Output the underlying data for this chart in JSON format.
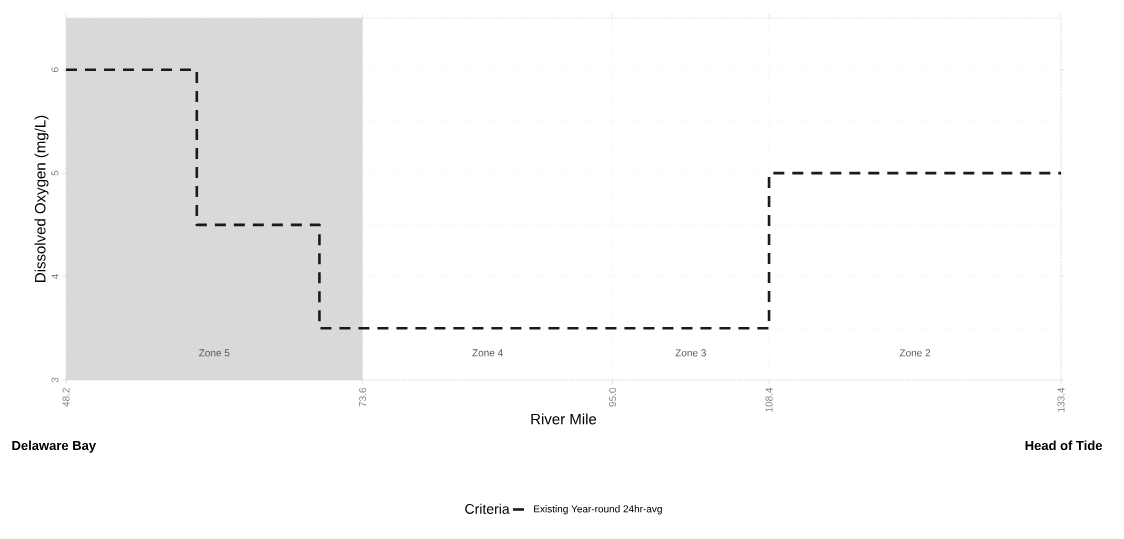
{
  "chart_data": {
    "type": "step",
    "xlabel": "River Mile",
    "ylabel": "Dissolved Oxygen (mg/L)",
    "legend_title": "Criteria",
    "series": [
      {
        "name": "Existing Year-round 24hr-avg",
        "color": "#1a1a1a",
        "x": [
          48.2,
          59.4,
          69.9,
          108.4,
          133.4
        ],
        "values": [
          6,
          4.5,
          3.5,
          5,
          5
        ]
      }
    ],
    "xlim": [
      48.2,
      133.4
    ],
    "xticks": [
      {
        "value": 48.2,
        "label": "48.2"
      },
      {
        "value": 73.6,
        "label": "73.6"
      },
      {
        "value": 95.0,
        "label": "95.0"
      },
      {
        "value": 108.4,
        "label": "108.4"
      },
      {
        "value": 133.4,
        "label": "133.4"
      }
    ],
    "ylim": [
      3,
      6.5
    ],
    "yticks": [
      3,
      4,
      5,
      6
    ],
    "bands": [
      {
        "axis": "x",
        "from": 48.2,
        "to": 73.6,
        "label": "Zone 5",
        "color": "#d9d9d9"
      }
    ],
    "annotations": [
      "Delaware Bay",
      "Head of Tide",
      "Zone 4",
      "Zone 3",
      "Zone 2"
    ],
    "grid": true,
    "legend": "bottom",
    "line_style": "dashed",
    "marker": "none"
  }
}
